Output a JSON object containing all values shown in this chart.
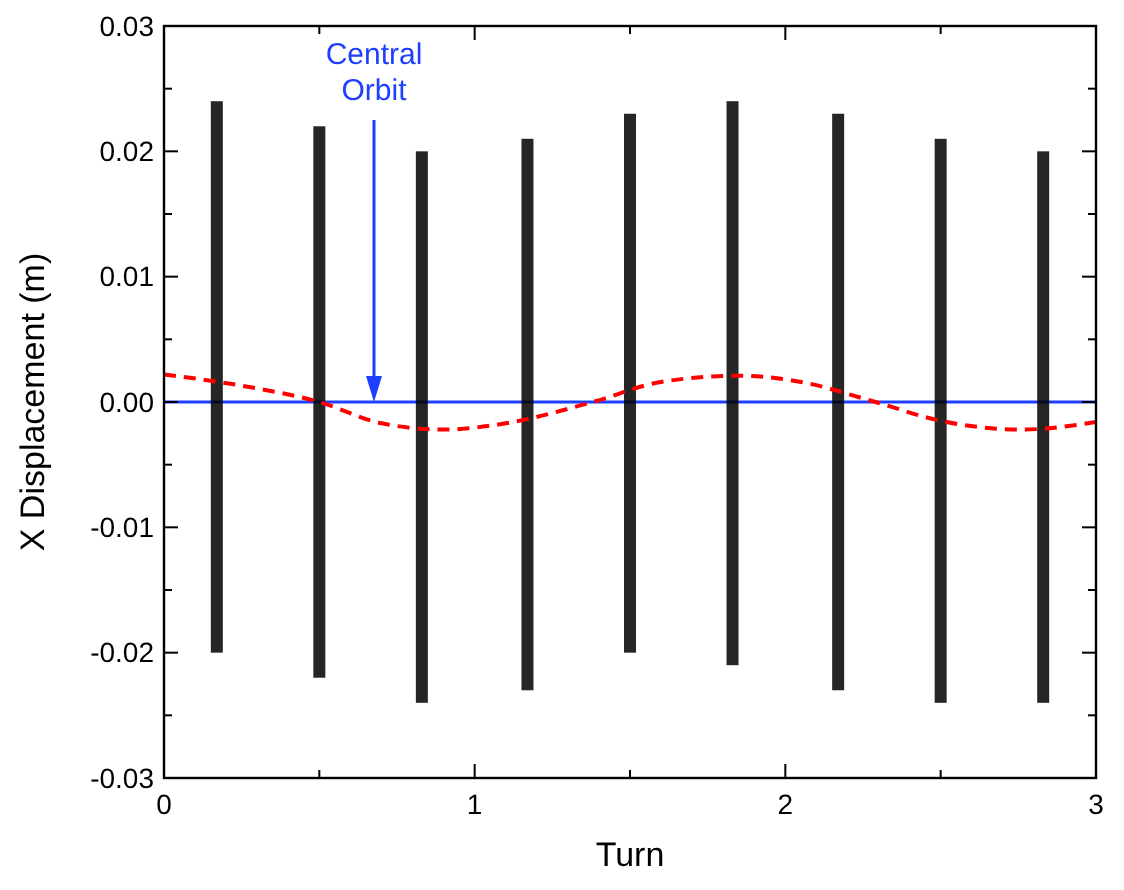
{
  "chart_data": {
    "type": "bar",
    "xlabel": "Turn",
    "ylabel": "X Displacement (m)",
    "xlim": [
      0,
      3
    ],
    "ylim": [
      -0.03,
      0.03
    ],
    "xticks": [
      0,
      {
        "value": 0.5,
        "label": null
      },
      1,
      {
        "value": 1.5,
        "label": null
      },
      2,
      {
        "value": 2.5,
        "label": null
      },
      3
    ],
    "yticks": [
      -0.03,
      {
        "value": -0.025,
        "label": null
      },
      -0.02,
      {
        "value": -0.015,
        "label": null
      },
      -0.01,
      {
        "value": -0.005,
        "label": null
      },
      {
        "value": 0,
        "label": "0.00"
      },
      {
        "value": 0.005,
        "label": null
      },
      0.01,
      {
        "value": 0.015,
        "label": null
      },
      0.02,
      {
        "value": 0.025,
        "label": null
      },
      0.03
    ],
    "series": [
      {
        "color": "#000000",
        "x": [
          0.17,
          0.5,
          0.83,
          1.17,
          1.5,
          1.83,
          2.17,
          2.5,
          2.83
        ],
        "base": [
          -0.02,
          -0.022,
          -0.024,
          -0.023,
          -0.02,
          -0.021,
          -0.023,
          -0.024,
          -0.024
        ],
        "values": [
          0.044,
          0.044,
          0.044,
          0.044,
          0.043,
          0.045,
          0.046,
          0.045,
          0.044
        ]
      },
      {
        "type": "line",
        "color": "#ff0000",
        "line_style": "dashed",
        "x": [
          0,
          0.25,
          0.5,
          0.7,
          0.9,
          1.1,
          1.38,
          1.6,
          1.85,
          2.05,
          2.29,
          2.5,
          2.76,
          3.0
        ],
        "values": [
          0.0022,
          0.0013,
          0.0,
          -0.0017,
          -0.0022,
          -0.0017,
          0.0,
          0.0016,
          0.0021,
          0.0016,
          0.0,
          -0.0015,
          -0.0022,
          -0.0016
        ]
      }
    ],
    "ref_lines": [
      {
        "axis": "y",
        "value": 0,
        "color": "#1f3fff"
      }
    ],
    "annotations": [
      "Central Orbit"
    ],
    "grid": false
  }
}
